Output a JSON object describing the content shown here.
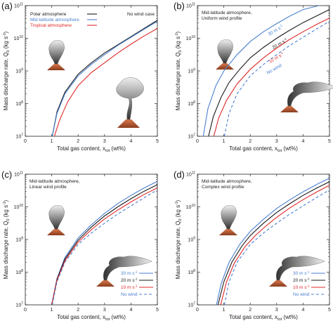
{
  "chart_data": [
    {
      "type": "line",
      "panel_label": "(a)",
      "annotation": [
        "No wind case"
      ],
      "xlabel": "Total gas content, x",
      "xlabel_sub": "tot",
      "xlabel_unit": " (wt%)",
      "ylabel": "Mass discharge rate, Q",
      "ylabel_sub": "0",
      "ylabel_unit": " (kg s",
      "xlim": [
        0,
        5
      ],
      "ylim_log10": [
        7,
        11
      ],
      "x_ticks": [
        "0",
        "1",
        "2",
        "3",
        "4",
        "5"
      ],
      "y_ticks": [
        7,
        8,
        9,
        10,
        11
      ],
      "legend_position": "top-left",
      "series": [
        {
          "name": "Polar atmosphere",
          "color": "#1a1a1a",
          "dash": "none",
          "x": [
            1.02,
            1.2,
            1.5,
            2,
            2.5,
            3,
            3.5,
            4,
            4.5,
            5
          ],
          "log10_y": [
            7.0,
            7.75,
            8.35,
            8.9,
            9.25,
            9.55,
            9.8,
            10.05,
            10.3,
            10.55
          ]
        },
        {
          "name": "Mid-latitude atmosphere",
          "color": "#4a7fd0",
          "dash": "none",
          "x": [
            1.02,
            1.2,
            1.5,
            2,
            2.5,
            3,
            3.5,
            4,
            4.5,
            5
          ],
          "log10_y": [
            7.0,
            7.7,
            8.3,
            8.85,
            9.2,
            9.5,
            9.78,
            10.03,
            10.28,
            10.52
          ]
        },
        {
          "name": "Tropical atmosphere",
          "color": "#e02828",
          "dash": "none",
          "x": [
            1.1,
            1.3,
            1.6,
            2,
            2.5,
            3,
            3.5,
            4,
            4.5,
            5
          ],
          "log10_y": [
            7.0,
            7.5,
            8.05,
            8.55,
            8.95,
            9.25,
            9.55,
            9.82,
            10.07,
            10.3
          ]
        }
      ]
    },
    {
      "type": "line",
      "panel_label": "(b)",
      "annotation": [
        "Mid-latitude atmosphere,",
        "Uniform wind profile"
      ],
      "xlabel": "Total gas content, x",
      "xlabel_sub": "tot",
      "xlabel_unit": " (wt%)",
      "ylabel": "Mass discharge rate, Q",
      "ylabel_sub": "0",
      "ylabel_unit": " (kg s",
      "xlim": [
        0,
        5
      ],
      "ylim_log10": [
        7,
        11
      ],
      "x_ticks": [
        "0",
        "1",
        "2",
        "3",
        "4",
        "5"
      ],
      "y_ticks": [
        7,
        8,
        9,
        10,
        11
      ],
      "legend_position": "inline",
      "series": [
        {
          "name": "30 m s",
          "color": "#4a7fd0",
          "dash": "none",
          "x": [
            0.22,
            0.4,
            0.7,
            1,
            1.5,
            2,
            2.5,
            3,
            3.5,
            4,
            4.6
          ],
          "log10_y": [
            7.0,
            7.85,
            8.55,
            9.0,
            9.5,
            9.9,
            10.2,
            10.45,
            10.68,
            10.88,
            11.0
          ]
        },
        {
          "name": "20 m s",
          "color": "#1a1a1a",
          "dash": "none",
          "x": [
            0.42,
            0.6,
            0.9,
            1.2,
            1.6,
            2,
            2.5,
            3,
            3.5,
            4,
            4.5,
            5
          ],
          "log10_y": [
            7.0,
            7.6,
            8.2,
            8.65,
            9.05,
            9.4,
            9.72,
            10.0,
            10.25,
            10.48,
            10.68,
            10.88
          ]
        },
        {
          "name": "10 m s",
          "color": "#e02828",
          "dash": "none",
          "x": [
            0.62,
            0.8,
            1.1,
            1.5,
            2,
            2.5,
            3,
            3.5,
            4,
            4.5,
            5
          ],
          "log10_y": [
            7.0,
            7.55,
            8.1,
            8.6,
            9.05,
            9.4,
            9.7,
            9.97,
            10.2,
            10.42,
            10.62
          ]
        },
        {
          "name": "No wind",
          "color": "#4a7fd0",
          "dash": "4,3",
          "x": [
            1.02,
            1.2,
            1.5,
            2,
            2.5,
            3,
            3.5,
            4,
            4.5,
            5
          ],
          "log10_y": [
            7.0,
            7.7,
            8.3,
            8.85,
            9.2,
            9.5,
            9.78,
            10.03,
            10.28,
            10.52
          ]
        }
      ]
    },
    {
      "type": "line",
      "panel_label": "(c)",
      "annotation": [
        "Mid-latitude atmosphere,",
        "Linear wind profile"
      ],
      "xlabel": "Total gas content, x",
      "xlabel_sub": "tot",
      "xlabel_unit": " (wt%)",
      "ylabel": "Mass discharge rate, Q",
      "ylabel_sub": "0",
      "ylabel_unit": " (kg s",
      "xlim": [
        0,
        5
      ],
      "ylim_log10": [
        7,
        11
      ],
      "x_ticks": [
        "0",
        "1",
        "2",
        "3",
        "4",
        "5"
      ],
      "y_ticks": [
        7,
        8,
        9,
        10,
        11
      ],
      "legend_position": "bottom-right",
      "series": [
        {
          "name": "30 m s",
          "color": "#4a7fd0",
          "dash": "none",
          "x": [
            1.0,
            1.2,
            1.5,
            2,
            2.5,
            3,
            3.5,
            4,
            4.5,
            5
          ],
          "log10_y": [
            7.0,
            7.8,
            8.45,
            9.05,
            9.45,
            9.8,
            10.1,
            10.35,
            10.58,
            10.78
          ]
        },
        {
          "name": "20 m s",
          "color": "#1a1a1a",
          "dash": "none",
          "x": [
            1.0,
            1.2,
            1.5,
            2,
            2.5,
            3,
            3.5,
            4,
            4.5,
            5
          ],
          "log10_y": [
            7.0,
            7.78,
            8.4,
            8.98,
            9.38,
            9.72,
            10.0,
            10.25,
            10.48,
            10.68
          ]
        },
        {
          "name": "10 m s",
          "color": "#e02828",
          "dash": "none",
          "x": [
            1.0,
            1.2,
            1.5,
            2,
            2.5,
            3,
            3.5,
            4,
            4.5,
            5
          ],
          "log10_y": [
            7.0,
            7.75,
            8.35,
            8.92,
            9.3,
            9.63,
            9.9,
            10.15,
            10.38,
            10.58
          ]
        },
        {
          "name": "No wind",
          "color": "#4a7fd0",
          "dash": "4,3",
          "x": [
            1.02,
            1.2,
            1.5,
            2,
            2.5,
            3,
            3.5,
            4,
            4.5,
            5
          ],
          "log10_y": [
            7.0,
            7.7,
            8.3,
            8.85,
            9.2,
            9.5,
            9.78,
            10.03,
            10.28,
            10.52
          ]
        }
      ]
    },
    {
      "type": "line",
      "panel_label": "(d)",
      "annotation": [
        "Mid-latitude atmosphere,",
        "Complex wind profile"
      ],
      "xlabel": "Total gas content, x",
      "xlabel_sub": "tot",
      "xlabel_unit": " (wt%)",
      "ylabel": "Mass discharge rate, Q",
      "ylabel_sub": "0",
      "ylabel_unit": " (kg s",
      "xlim": [
        0,
        5
      ],
      "ylim_log10": [
        7,
        11
      ],
      "x_ticks": [
        "0",
        "1",
        "2",
        "3",
        "4",
        "5"
      ],
      "y_ticks": [
        7,
        8,
        9,
        10,
        11
      ],
      "legend_position": "bottom-right",
      "series": [
        {
          "name": "30 m s",
          "color": "#4a7fd0",
          "dash": "none",
          "x": [
            0.72,
            0.9,
            1.2,
            1.6,
            2,
            2.5,
            3,
            3.5,
            4,
            4.5,
            5
          ],
          "log10_y": [
            7.0,
            7.65,
            8.3,
            8.85,
            9.25,
            9.62,
            9.95,
            10.22,
            10.46,
            10.68,
            10.88
          ]
        },
        {
          "name": "20 m s",
          "color": "#1a1a1a",
          "dash": "none",
          "x": [
            0.78,
            1.0,
            1.3,
            1.7,
            2,
            2.5,
            3,
            3.5,
            4,
            4.5,
            5
          ],
          "log10_y": [
            7.0,
            7.7,
            8.3,
            8.82,
            9.12,
            9.5,
            9.83,
            10.1,
            10.35,
            10.57,
            10.77
          ]
        },
        {
          "name": "10 m s",
          "color": "#e02828",
          "dash": "none",
          "x": [
            0.88,
            1.1,
            1.4,
            1.8,
            2.2,
            2.6,
            3,
            3.5,
            4,
            4.5,
            5
          ],
          "log10_y": [
            7.0,
            7.7,
            8.28,
            8.78,
            9.13,
            9.42,
            9.68,
            9.97,
            10.22,
            10.45,
            10.66
          ]
        },
        {
          "name": "No wind",
          "color": "#4a7fd0",
          "dash": "4,3",
          "x": [
            1.02,
            1.2,
            1.5,
            2,
            2.5,
            3,
            3.5,
            4,
            4.5,
            5
          ],
          "log10_y": [
            7.0,
            7.7,
            8.3,
            8.85,
            9.2,
            9.5,
            9.78,
            10.03,
            10.28,
            10.52
          ]
        }
      ]
    }
  ]
}
